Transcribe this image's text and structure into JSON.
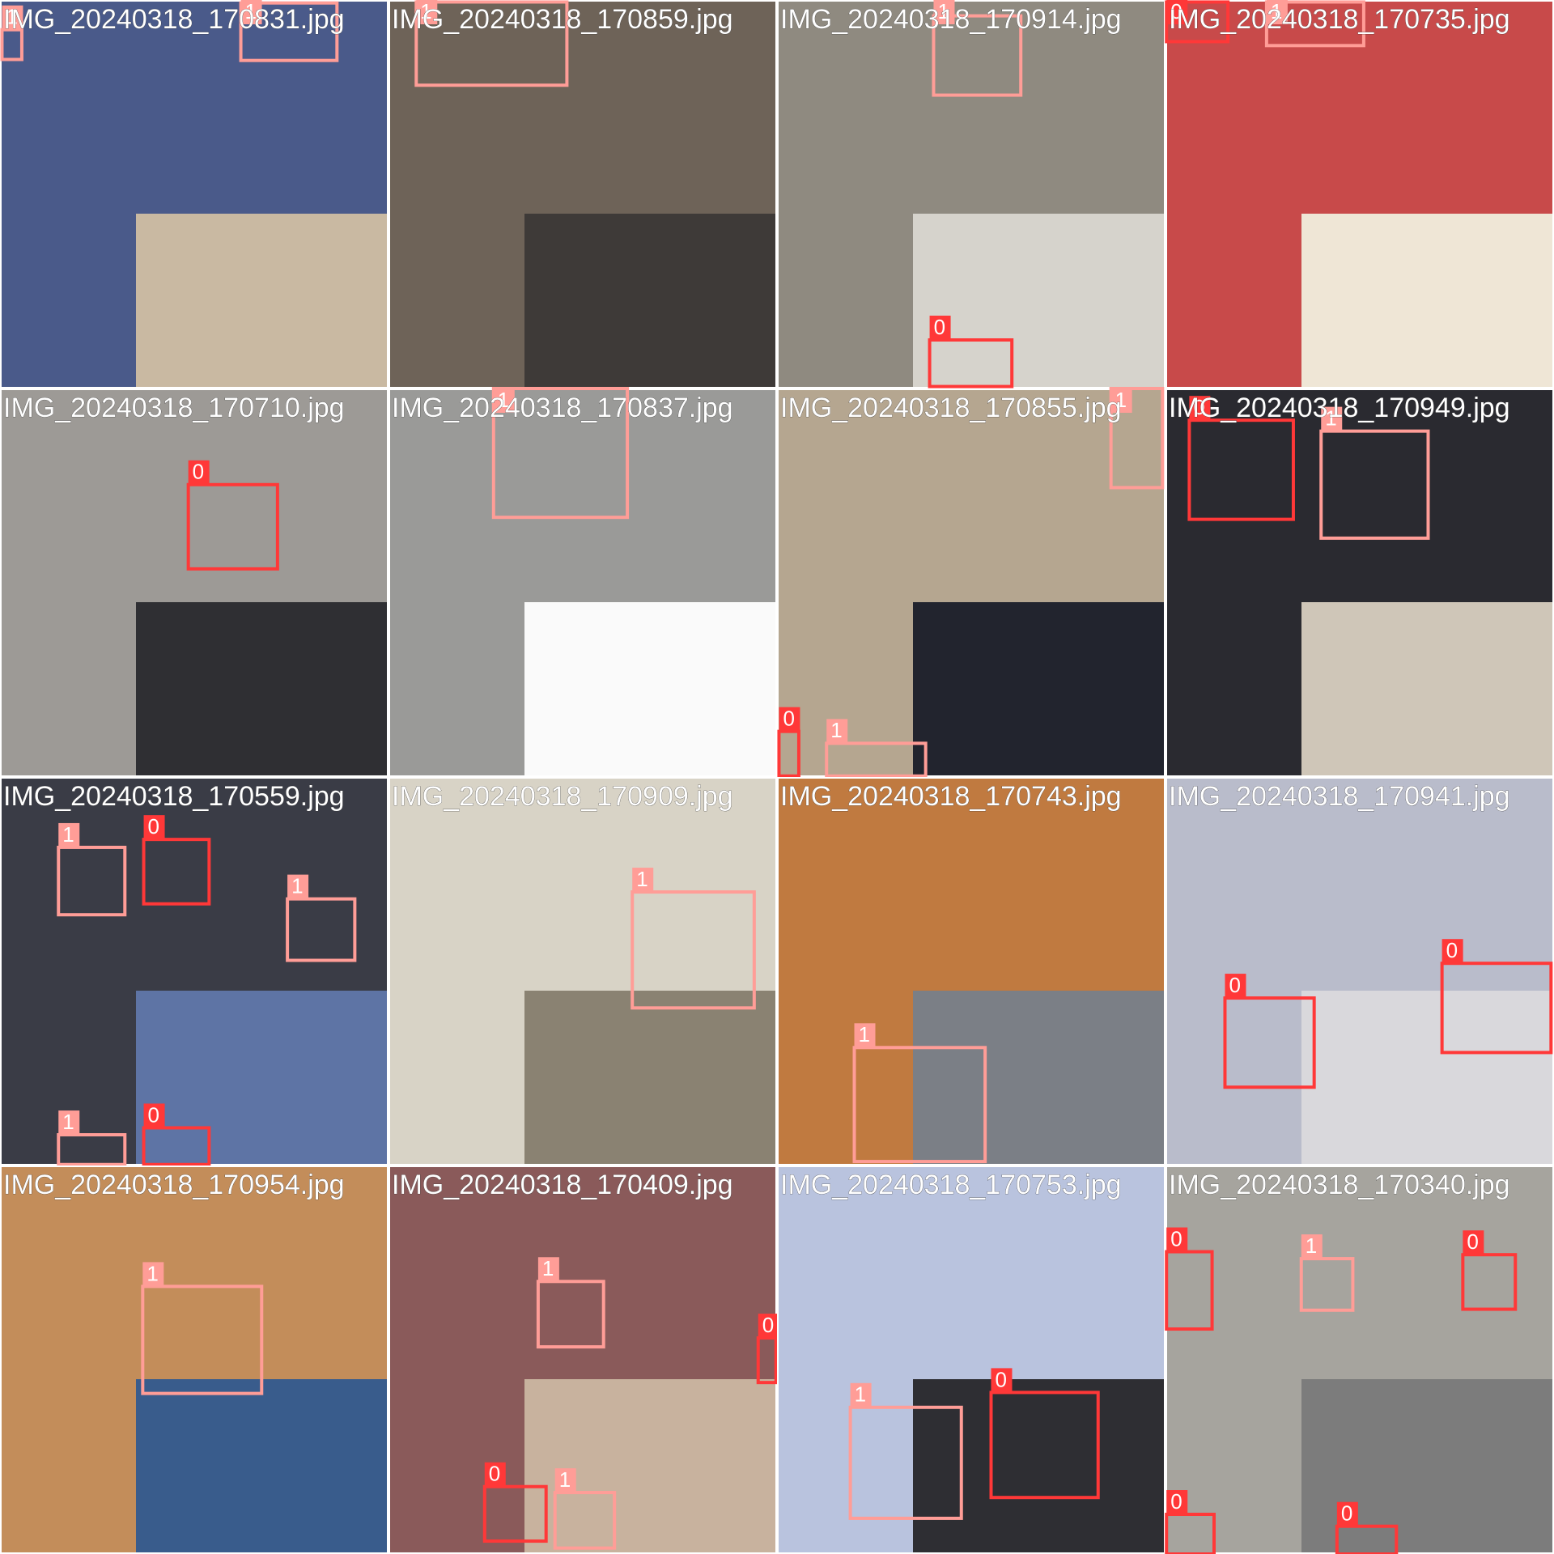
{
  "class_colors": {
    "0": "#ff3838",
    "1": "#ff9d97"
  },
  "tiles": [
    {
      "filename": "IMG_20240318_170831.jpg",
      "boxes": [
        {
          "label": "1"
        },
        {
          "label": "1"
        }
      ]
    },
    {
      "filename": "IMG_20240318_170859.jpg",
      "boxes": [
        {
          "label": "1"
        }
      ]
    },
    {
      "filename": "IMG_20240318_170914.jpg",
      "boxes": [
        {
          "label": "1"
        },
        {
          "label": "0"
        }
      ]
    },
    {
      "filename": "IMG_20240318_170735.jpg",
      "boxes": [
        {
          "label": "0"
        },
        {
          "label": "1"
        }
      ]
    },
    {
      "filename": "IMG_20240318_170710.jpg",
      "boxes": [
        {
          "label": "0"
        }
      ]
    },
    {
      "filename": "IMG_20240318_170837.jpg",
      "boxes": [
        {
          "label": "1"
        }
      ]
    },
    {
      "filename": "IMG_20240318_170855.jpg",
      "boxes": [
        {
          "label": "1"
        },
        {
          "label": "0"
        },
        {
          "label": "1"
        }
      ]
    },
    {
      "filename": "IMG_20240318_170949.jpg",
      "boxes": [
        {
          "label": "0"
        },
        {
          "label": "1"
        }
      ]
    },
    {
      "filename": "IMG_20240318_170559.jpg",
      "boxes": [
        {
          "label": "1"
        },
        {
          "label": "0"
        },
        {
          "label": "1"
        },
        {
          "label": "1"
        },
        {
          "label": "0"
        }
      ]
    },
    {
      "filename": "IMG_20240318_170909.jpg",
      "boxes": [
        {
          "label": "1"
        }
      ]
    },
    {
      "filename": "IMG_20240318_170743.jpg",
      "boxes": [
        {
          "label": "1"
        }
      ]
    },
    {
      "filename": "IMG_20240318_170941.jpg",
      "boxes": [
        {
          "label": "0"
        },
        {
          "label": "0"
        }
      ]
    },
    {
      "filename": "IMG_20240318_170954.jpg",
      "boxes": [
        {
          "label": "1"
        }
      ]
    },
    {
      "filename": "IMG_20240318_170409.jpg",
      "boxes": [
        {
          "label": "1"
        },
        {
          "label": "0"
        },
        {
          "label": "0"
        },
        {
          "label": "1"
        }
      ]
    },
    {
      "filename": "IMG_20240318_170753.jpg",
      "boxes": [
        {
          "label": "1"
        },
        {
          "label": "0"
        }
      ]
    },
    {
      "filename": "IMG_20240318_170340.jpg",
      "boxes": [
        {
          "label": "0"
        },
        {
          "label": "1"
        },
        {
          "label": "0"
        },
        {
          "label": "0"
        },
        {
          "label": "0"
        }
      ]
    }
  ]
}
